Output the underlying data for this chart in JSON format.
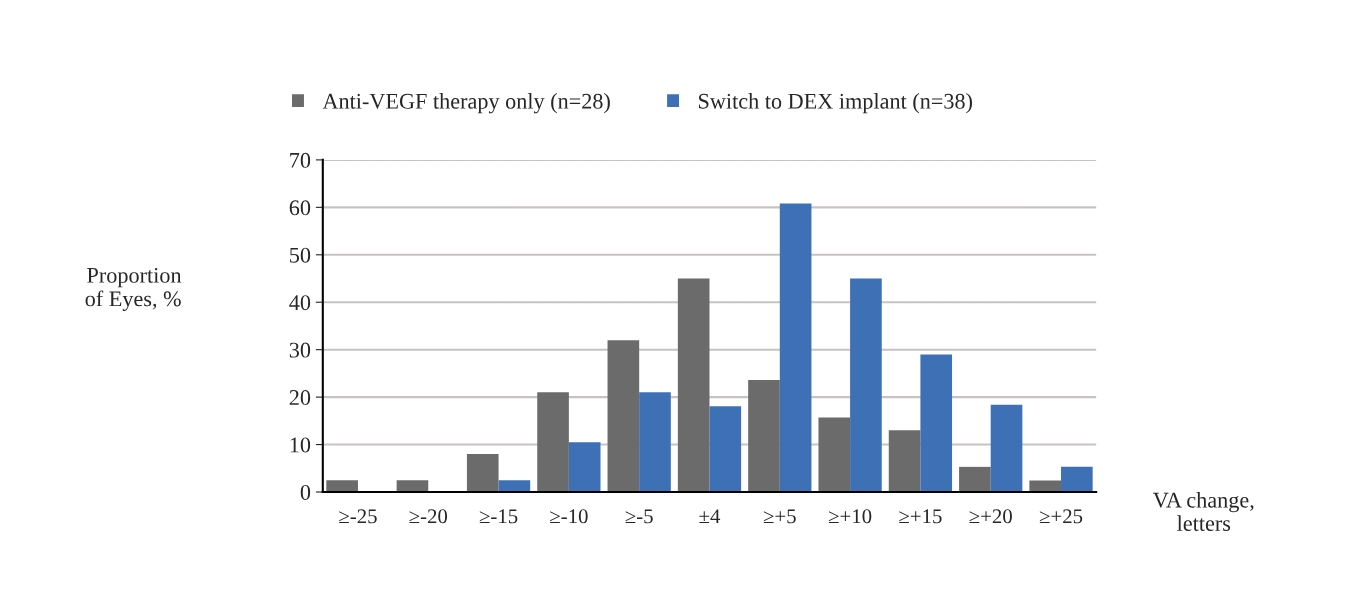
{
  "chart_data": {
    "type": "bar",
    "categories": [
      "≥-25",
      "≥-20",
      "≥-15",
      "≥-10",
      "≥-5",
      "±4",
      "≥+5",
      "≥+10",
      "≥+15",
      "≥+20",
      "≥+25"
    ],
    "series": [
      {
        "name": "Anti-VEGF therapy only (n=28)",
        "color": "#6b6b6b",
        "values": [
          2.5,
          2.5,
          8,
          21,
          32,
          45,
          23.6,
          15.7,
          13,
          5.3,
          2.4
        ]
      },
      {
        "name": "Switch to DEX implant (n=38)",
        "color": "#3e70b6",
        "values": [
          0,
          0,
          2.5,
          10.5,
          21,
          18.1,
          60.8,
          45,
          29,
          18.4,
          5.3
        ]
      }
    ],
    "ylabel": "Proportion\nof Eyes, %",
    "xlabel": "VA change,\nletters",
    "ylim": [
      0,
      70
    ],
    "yticks": [
      0,
      10,
      20,
      30,
      40,
      50,
      60,
      70
    ],
    "grid": "y",
    "legend": "top"
  }
}
